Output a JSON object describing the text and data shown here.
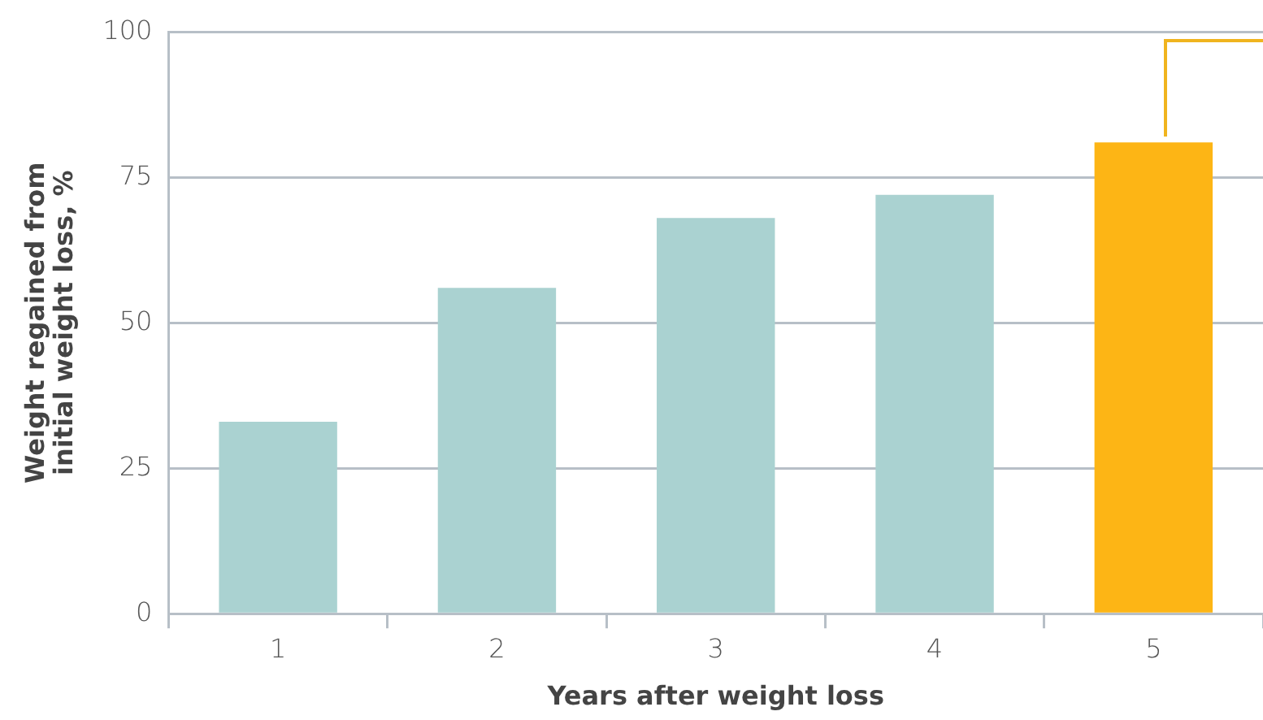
{
  "chart_data": {
    "type": "bar",
    "xlabel": "Years after weight loss",
    "ylabel": "Weight regained from initial weight loss, %",
    "categories": [
      "1",
      "2",
      "3",
      "4",
      "5"
    ],
    "values": [
      33,
      56,
      68,
      72,
      81
    ],
    "colors": [
      "#aad2d1",
      "#aad2d1",
      "#aad2d1",
      "#aad2d1",
      "#fdb515"
    ],
    "ylim": [
      0,
      100
    ],
    "yticks": [
      0,
      25,
      50,
      75,
      100
    ],
    "grid": "y",
    "legend": false
  }
}
